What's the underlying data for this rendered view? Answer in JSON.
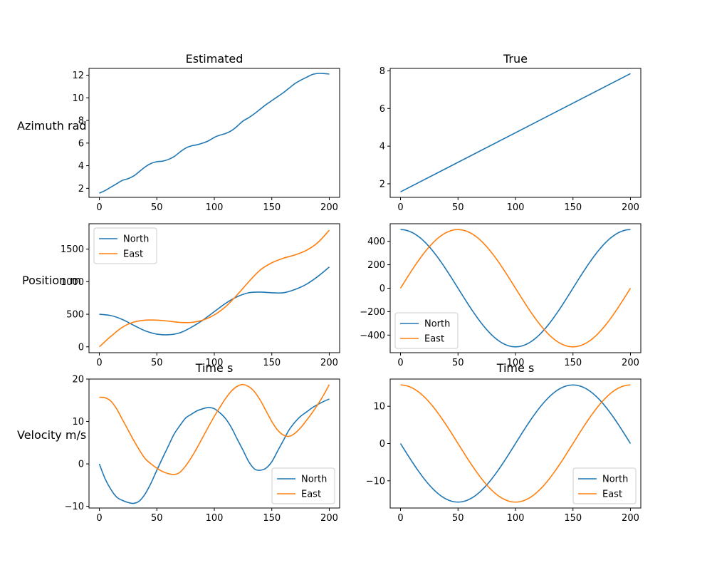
{
  "colors": {
    "north": "#1f77b4",
    "east": "#ff7f0e",
    "single": "#1f77b4"
  },
  "row_labels": [
    "Azimuth rad",
    "Position m",
    "Velocity m/s"
  ],
  "chart_data": [
    {
      "id": "est-azimuth",
      "type": "line",
      "title": "Estimated",
      "xlabel": "",
      "ylabel": "Azimuth rad",
      "xlim": [
        -9,
        209
      ],
      "ylim": [
        1.2,
        12.6
      ],
      "xticks": [
        0,
        50,
        100,
        150,
        200
      ],
      "yticks": [
        2,
        4,
        6,
        8,
        10,
        12
      ],
      "legend": null,
      "grid": false,
      "series": [
        {
          "color_key": "single",
          "x": [
            0,
            5,
            10,
            15,
            20,
            25,
            30,
            35,
            40,
            45,
            50,
            55,
            60,
            65,
            70,
            75,
            80,
            85,
            90,
            95,
            100,
            105,
            110,
            115,
            120,
            125,
            130,
            135,
            140,
            145,
            150,
            155,
            160,
            165,
            170,
            175,
            180,
            185,
            190,
            195,
            200
          ],
          "y": [
            1.57,
            1.8,
            2.1,
            2.4,
            2.7,
            2.85,
            3.1,
            3.5,
            3.9,
            4.2,
            4.35,
            4.4,
            4.55,
            4.8,
            5.2,
            5.55,
            5.75,
            5.85,
            6.0,
            6.2,
            6.5,
            6.7,
            6.85,
            7.1,
            7.5,
            7.95,
            8.25,
            8.6,
            9.0,
            9.4,
            9.75,
            10.1,
            10.45,
            10.85,
            11.25,
            11.55,
            11.8,
            12.05,
            12.15,
            12.15,
            12.1
          ]
        }
      ]
    },
    {
      "id": "true-azimuth",
      "type": "line",
      "title": "True",
      "xlabel": "",
      "ylabel": "",
      "xlim": [
        -9,
        209
      ],
      "ylim": [
        1.28,
        8.13
      ],
      "xticks": [
        0,
        50,
        100,
        150,
        200
      ],
      "yticks": [
        2,
        4,
        6,
        8
      ],
      "legend": null,
      "grid": false,
      "series": [
        {
          "color_key": "single",
          "x": [
            0,
            200
          ],
          "y": [
            1.571,
            7.854
          ]
        }
      ]
    },
    {
      "id": "est-position",
      "type": "line",
      "title": "",
      "xlabel": "Time s",
      "ylabel": "Position m",
      "xlim": [
        -9,
        209
      ],
      "ylim": [
        -90,
        1890
      ],
      "xticks": [
        0,
        50,
        100,
        150,
        200
      ],
      "yticks": [
        0,
        500,
        1000,
        1500
      ],
      "legend": "upper-left",
      "grid": false,
      "series": [
        {
          "name": "North",
          "color_key": "north",
          "x": [
            0,
            10,
            20,
            30,
            40,
            50,
            60,
            70,
            80,
            90,
            100,
            110,
            120,
            130,
            140,
            150,
            160,
            170,
            180,
            190,
            200
          ],
          "y": [
            500,
            480,
            420,
            330,
            245,
            195,
            185,
            215,
            300,
            410,
            540,
            670,
            770,
            830,
            840,
            830,
            830,
            880,
            960,
            1080,
            1225
          ]
        },
        {
          "name": "East",
          "color_key": "east",
          "x": [
            0,
            10,
            20,
            30,
            40,
            50,
            60,
            70,
            80,
            90,
            100,
            110,
            120,
            130,
            140,
            150,
            160,
            170,
            180,
            190,
            200
          ],
          "y": [
            0,
            160,
            300,
            380,
            410,
            410,
            395,
            375,
            375,
            410,
            490,
            620,
            800,
            1000,
            1180,
            1290,
            1360,
            1410,
            1480,
            1600,
            1790
          ]
        }
      ]
    },
    {
      "id": "true-position",
      "type": "line",
      "title": "",
      "xlabel": "Time s",
      "ylabel": "",
      "xlim": [
        -9,
        209
      ],
      "ylim": [
        -550,
        550
      ],
      "xticks": [
        0,
        50,
        100,
        150,
        200
      ],
      "yticks": [
        -400,
        -200,
        0,
        200,
        400
      ],
      "legend": "lower-left",
      "grid": false,
      "series": [
        {
          "name": "North",
          "color_key": "north",
          "func": "cos",
          "amp": 500,
          "period": 200,
          "x0": 0,
          "x1": 200
        },
        {
          "name": "East",
          "color_key": "east",
          "func": "sin",
          "amp": 500,
          "period": 200,
          "x0": 0,
          "x1": 200
        }
      ]
    },
    {
      "id": "est-velocity",
      "type": "line",
      "title": "",
      "xlabel": "",
      "ylabel": "Velocity m/s",
      "xlim": [
        -9,
        209
      ],
      "ylim": [
        -10.4,
        20.0
      ],
      "xticks": [
        0,
        50,
        100,
        150,
        200
      ],
      "yticks": [
        -10,
        0,
        10,
        20
      ],
      "legend": "lower-right",
      "grid": false,
      "series": [
        {
          "name": "North",
          "color_key": "north",
          "x": [
            0,
            5,
            10,
            15,
            20,
            25,
            30,
            35,
            40,
            45,
            50,
            55,
            60,
            65,
            70,
            75,
            80,
            85,
            90,
            95,
            100,
            105,
            110,
            115,
            120,
            125,
            130,
            135,
            140,
            145,
            150,
            155,
            160,
            165,
            170,
            175,
            180,
            185,
            190,
            195,
            200
          ],
          "y": [
            0,
            -3.5,
            -6,
            -7.8,
            -8.6,
            -9.1,
            -9.3,
            -8.7,
            -7.0,
            -4.5,
            -1.5,
            1.4,
            4.2,
            7.0,
            9.0,
            10.8,
            11.7,
            12.5,
            13.0,
            13.3,
            13.0,
            12.0,
            10.6,
            8.5,
            5.8,
            3.2,
            0.5,
            -1.2,
            -1.5,
            -1.0,
            0.5,
            3.0,
            5.5,
            8.0,
            9.8,
            11.2,
            12.2,
            13.2,
            14.0,
            14.7,
            15.3
          ]
        },
        {
          "name": "East",
          "color_key": "east",
          "x": [
            0,
            5,
            10,
            15,
            20,
            25,
            30,
            35,
            40,
            45,
            50,
            55,
            60,
            65,
            70,
            75,
            80,
            85,
            90,
            95,
            100,
            105,
            110,
            115,
            120,
            125,
            130,
            135,
            140,
            145,
            150,
            155,
            160,
            165,
            170,
            175,
            180,
            185,
            190,
            195,
            200
          ],
          "y": [
            15.7,
            15.6,
            14.8,
            13.0,
            10.5,
            8.0,
            5.5,
            3.2,
            1.2,
            0,
            -1.0,
            -1.8,
            -2.3,
            -2.5,
            -2.0,
            -0.5,
            1.5,
            3.8,
            6.3,
            8.8,
            11.2,
            13.4,
            15.5,
            17.2,
            18.3,
            18.7,
            18.2,
            17.0,
            15.0,
            12.5,
            10.0,
            8.0,
            6.8,
            6.5,
            7.2,
            8.5,
            10.2,
            12.0,
            14.0,
            16.2,
            18.7
          ]
        }
      ]
    },
    {
      "id": "true-velocity",
      "type": "line",
      "title": "",
      "xlabel": "",
      "ylabel": "",
      "xlim": [
        -9,
        209
      ],
      "ylim": [
        -17.3,
        17.3
      ],
      "xticks": [
        0,
        50,
        100,
        150,
        200
      ],
      "yticks": [
        -10,
        0,
        10
      ],
      "legend": "lower-right",
      "grid": false,
      "series": [
        {
          "name": "North",
          "color_key": "north",
          "func": "negsin",
          "amp": 15.708,
          "period": 200,
          "x0": 0,
          "x1": 200
        },
        {
          "name": "East",
          "color_key": "east",
          "func": "cos",
          "amp": 15.708,
          "period": 200,
          "x0": 0,
          "x1": 200
        }
      ]
    }
  ]
}
